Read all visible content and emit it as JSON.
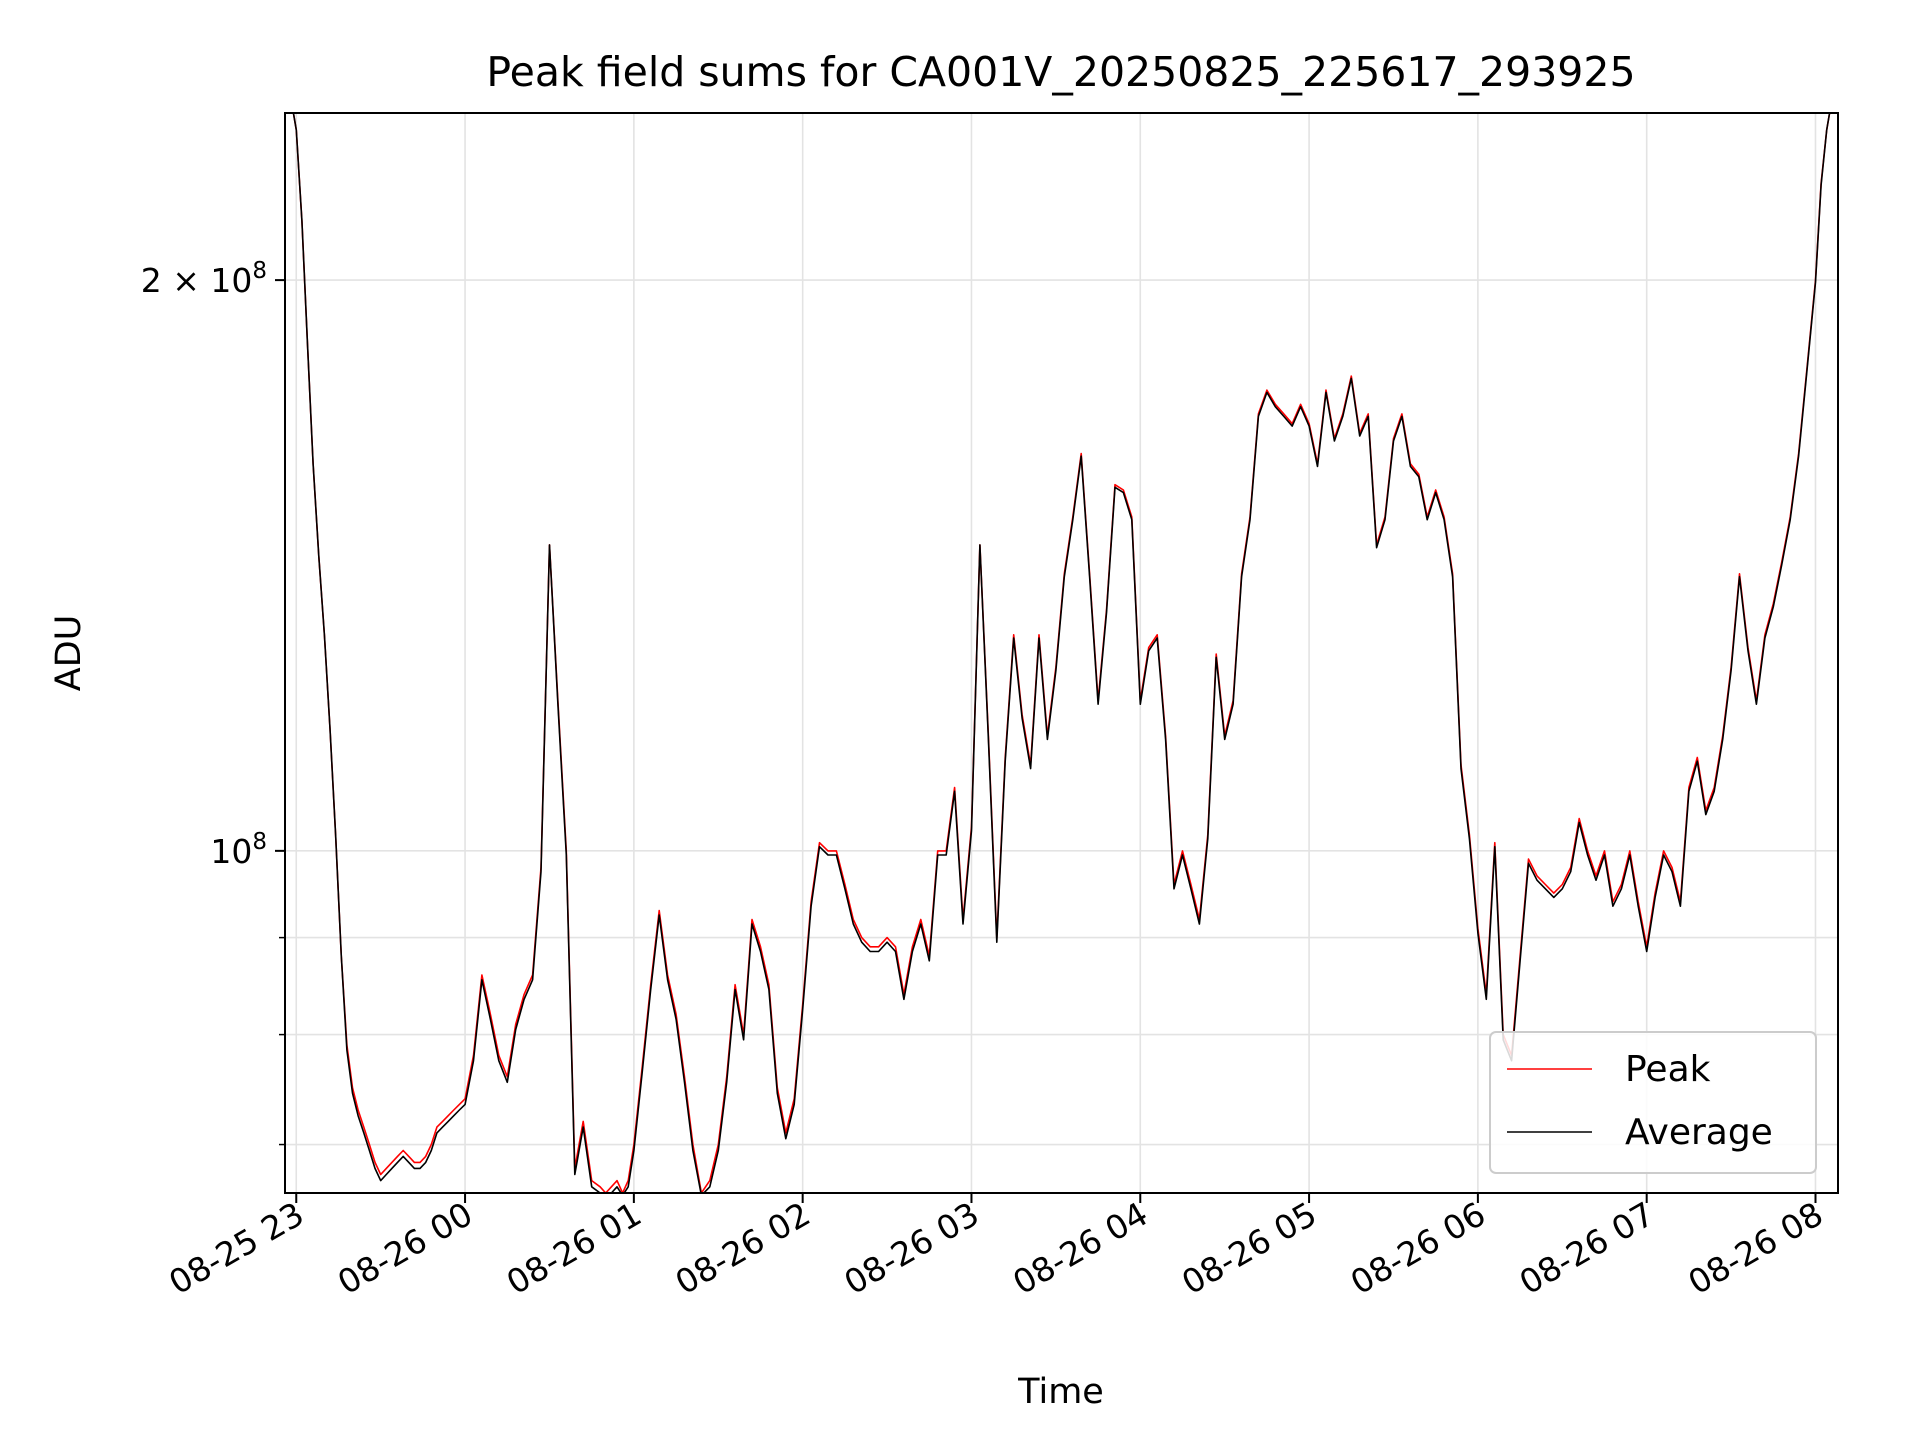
{
  "chart_data": {
    "type": "line",
    "title": "Peak field sums for CA001V_20250825_225617_293925",
    "xlabel": "Time",
    "ylabel": "ADU",
    "yscale": "log",
    "grid": true,
    "legend_position": "lower right",
    "xlim": [
      "2025-08-25 22:56",
      "2025-08-26 08:08"
    ],
    "ylim": [
      66000000,
      245000000
    ],
    "x_ticks": [
      {
        "time": "2025-08-25 23:00",
        "label": "08-25 23"
      },
      {
        "time": "2025-08-26 00:00",
        "label": "08-26 00"
      },
      {
        "time": "2025-08-26 01:00",
        "label": "08-26 01"
      },
      {
        "time": "2025-08-26 02:00",
        "label": "08-26 02"
      },
      {
        "time": "2025-08-26 03:00",
        "label": "08-26 03"
      },
      {
        "time": "2025-08-26 04:00",
        "label": "08-26 04"
      },
      {
        "time": "2025-08-26 05:00",
        "label": "08-26 05"
      },
      {
        "time": "2025-08-26 06:00",
        "label": "08-26 06"
      },
      {
        "time": "2025-08-26 07:00",
        "label": "08-26 07"
      },
      {
        "time": "2025-08-26 08:00",
        "label": "08-26 08"
      }
    ],
    "y_major_ticks": [
      {
        "value": 100000000,
        "label_base": "10",
        "label_exp": "8",
        "label_prefix": ""
      },
      {
        "value": 200000000,
        "label_base": "10",
        "label_exp": "8",
        "label_prefix": "2 × "
      }
    ],
    "y_minor_ticks": [
      70000000,
      80000000,
      90000000
    ],
    "series": [
      {
        "name": "Peak",
        "color": "#ff0000"
      },
      {
        "name": "Average",
        "color": "#000000"
      }
    ],
    "x": [
      "22:56",
      "22:58",
      "23:00",
      "23:02",
      "23:04",
      "23:06",
      "23:08",
      "23:10",
      "23:12",
      "23:14",
      "23:16",
      "23:18",
      "23:20",
      "23:22",
      "23:24",
      "23:26",
      "23:28",
      "23:30",
      "23:32",
      "23:34",
      "23:36",
      "23:38",
      "23:40",
      "23:42",
      "23:44",
      "23:46",
      "23:48",
      "23:50",
      "23:52",
      "23:54",
      "23:56",
      "23:58",
      "00:00",
      "00:03",
      "00:06",
      "00:09",
      "00:12",
      "00:15",
      "00:18",
      "00:21",
      "00:24",
      "00:27",
      "00:30",
      "00:33",
      "00:36",
      "00:39",
      "00:42",
      "00:45",
      "00:48",
      "00:50",
      "00:52",
      "00:54",
      "00:56",
      "00:58",
      "01:00",
      "01:03",
      "01:06",
      "01:09",
      "01:12",
      "01:15",
      "01:18",
      "01:21",
      "01:24",
      "01:27",
      "01:30",
      "01:33",
      "01:36",
      "01:39",
      "01:42",
      "01:45",
      "01:48",
      "01:51",
      "01:54",
      "01:57",
      "02:00",
      "02:03",
      "02:06",
      "02:09",
      "02:12",
      "02:15",
      "02:18",
      "02:21",
      "02:24",
      "02:27",
      "02:30",
      "02:33",
      "02:36",
      "02:39",
      "02:42",
      "02:45",
      "02:48",
      "02:51",
      "02:54",
      "02:57",
      "03:00",
      "03:03",
      "03:06",
      "03:09",
      "03:12",
      "03:15",
      "03:18",
      "03:21",
      "03:24",
      "03:27",
      "03:30",
      "03:33",
      "03:36",
      "03:39",
      "03:42",
      "03:45",
      "03:48",
      "03:51",
      "03:54",
      "03:57",
      "04:00",
      "04:03",
      "04:06",
      "04:09",
      "04:12",
      "04:15",
      "04:18",
      "04:21",
      "04:24",
      "04:27",
      "04:30",
      "04:33",
      "04:36",
      "04:39",
      "04:42",
      "04:45",
      "04:48",
      "04:51",
      "04:54",
      "04:57",
      "05:00",
      "05:03",
      "05:06",
      "05:09",
      "05:12",
      "05:15",
      "05:18",
      "05:21",
      "05:24",
      "05:27",
      "05:30",
      "05:33",
      "05:36",
      "05:39",
      "05:42",
      "05:45",
      "05:48",
      "05:51",
      "05:54",
      "05:57",
      "06:00",
      "06:03",
      "06:06",
      "06:09",
      "06:12",
      "06:15",
      "06:18",
      "06:21",
      "06:24",
      "06:27",
      "06:30",
      "06:33",
      "06:36",
      "06:39",
      "06:42",
      "06:45",
      "06:48",
      "06:51",
      "06:54",
      "06:57",
      "07:00",
      "07:03",
      "07:06",
      "07:09",
      "07:12",
      "07:15",
      "07:18",
      "07:21",
      "07:24",
      "07:27",
      "07:30",
      "07:33",
      "07:36",
      "07:39",
      "07:42",
      "07:45",
      "07:48",
      "07:51",
      "07:54",
      "07:57",
      "08:00",
      "08:02",
      "08:04",
      "08:06"
    ],
    "peak": [
      250000000,
      250000000,
      240000000,
      215000000,
      185000000,
      160000000,
      143000000,
      130000000,
      116000000,
      102000000,
      88000000,
      79000000,
      75000000,
      73000000,
      71500000,
      70000000,
      68500000,
      67500000,
      68000000,
      68500000,
      69000000,
      69500000,
      69000000,
      68500000,
      68500000,
      69000000,
      70000000,
      71500000,
      72000000,
      72500000,
      73000000,
      73500000,
      74000000,
      78000000,
      86000000,
      82000000,
      78000000,
      76000000,
      81000000,
      84000000,
      86000000,
      98000000,
      145000000,
      120000000,
      100000000,
      68000000,
      72000000,
      67000000,
      66500000,
      66000000,
      66500000,
      67000000,
      66000000,
      67000000,
      70000000,
      77000000,
      85000000,
      93000000,
      86000000,
      82000000,
      76000000,
      70000000,
      66000000,
      67000000,
      70000000,
      76000000,
      85000000,
      80000000,
      92000000,
      89000000,
      85000000,
      75000000,
      71000000,
      74000000,
      83000000,
      94000000,
      101000000,
      100000000,
      100000000,
      96000000,
      92000000,
      90000000,
      89000000,
      89000000,
      90000000,
      89000000,
      84000000,
      89000000,
      92000000,
      88000000,
      100000000,
      100000000,
      108000000,
      92000000,
      103000000,
      145000000,
      115000000,
      90000000,
      112000000,
      130000000,
      118000000,
      111000000,
      130000000,
      115000000,
      125000000,
      140000000,
      150000000,
      162000000,
      140000000,
      120000000,
      134000000,
      156000000,
      155000000,
      150000000,
      120000000,
      128000000,
      130000000,
      115000000,
      96000000,
      100000000,
      96000000,
      92000000,
      102000000,
      127000000,
      115000000,
      120000000,
      140000000,
      150000000,
      170000000,
      175000000,
      172000000,
      170000000,
      168000000,
      172000000,
      168000000,
      160000000,
      175000000,
      165000000,
      170000000,
      178000000,
      166000000,
      170000000,
      145000000,
      150000000,
      165000000,
      170000000,
      160000000,
      158000000,
      150000000,
      155000000,
      150000000,
      140000000,
      111000000,
      102000000,
      91000000,
      84000000,
      101000000,
      80000000,
      78000000,
      88000000,
      99000000,
      97000000,
      96000000,
      95000000,
      96000000,
      98000000,
      104000000,
      100000000,
      97000000,
      100000000,
      94000000,
      96000000,
      100000000,
      94000000,
      89000000,
      95000000,
      100000000,
      98000000,
      94000000,
      108000000,
      112000000,
      105000000,
      108000000,
      115000000,
      125000000,
      140000000,
      128000000,
      120000000,
      130000000,
      135000000,
      142000000,
      150000000,
      162000000,
      180000000,
      200000000,
      225000000,
      240000000,
      250000000
    ],
    "average": [
      250000000,
      250000000,
      240000000,
      215000000,
      185000000,
      160000000,
      143000000,
      130000000,
      116000000,
      102000000,
      88000000,
      78500000,
      74500000,
      72500000,
      71000000,
      69500000,
      68000000,
      67000000,
      67500000,
      68000000,
      68500000,
      69000000,
      68500000,
      68000000,
      68000000,
      68500000,
      69500000,
      71000000,
      71500000,
      72000000,
      72500000,
      73000000,
      73500000,
      77500000,
      85500000,
      81500000,
      77500000,
      75500000,
      80500000,
      83500000,
      85500000,
      97500000,
      145000000,
      119500000,
      99500000,
      67500000,
      71500000,
      66500000,
      66000000,
      65800000,
      66000000,
      66500000,
      65800000,
      66500000,
      69500000,
      76500000,
      84500000,
      92500000,
      85500000,
      81500000,
      75500000,
      69500000,
      65800000,
      66500000,
      69500000,
      75500000,
      84500000,
      79500000,
      91500000,
      88500000,
      84500000,
      74500000,
      70500000,
      73500000,
      82500000,
      93500000,
      100500000,
      99500000,
      99500000,
      95500000,
      91500000,
      89500000,
      88500000,
      88500000,
      89500000,
      88500000,
      83500000,
      88500000,
      91500000,
      87500000,
      99500000,
      99500000,
      107500000,
      91500000,
      102500000,
      145000000,
      114500000,
      89500000,
      111500000,
      129500000,
      117500000,
      110500000,
      129500000,
      114500000,
      124500000,
      139500000,
      149500000,
      161500000,
      139500000,
      119500000,
      133500000,
      155500000,
      154500000,
      149500000,
      119500000,
      127500000,
      129500000,
      114500000,
      95500000,
      99500000,
      95500000,
      91500000,
      101500000,
      126500000,
      114500000,
      119500000,
      139500000,
      149500000,
      169500000,
      174500000,
      171500000,
      169500000,
      167500000,
      171500000,
      167500000,
      159500000,
      174500000,
      164500000,
      169500000,
      177500000,
      165500000,
      169500000,
      144500000,
      149500000,
      164500000,
      169500000,
      159500000,
      157500000,
      149500000,
      154500000,
      149500000,
      139500000,
      110500000,
      101500000,
      90500000,
      83500000,
      100500000,
      79500000,
      77500000,
      87500000,
      98500000,
      96500000,
      95500000,
      94500000,
      95500000,
      97500000,
      103500000,
      99500000,
      96500000,
      99500000,
      93500000,
      95500000,
      99500000,
      93500000,
      88500000,
      94500000,
      99500000,
      97500000,
      93500000,
      107500000,
      111500000,
      104500000,
      107500000,
      114500000,
      124500000,
      139500000,
      127500000,
      119500000,
      129500000,
      134500000,
      141500000,
      149500000,
      161500000,
      179500000,
      199500000,
      224500000,
      240000000,
      250000000
    ]
  }
}
